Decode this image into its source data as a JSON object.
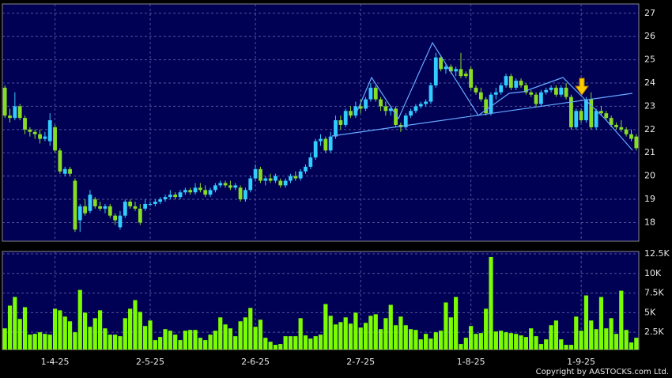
{
  "chart_data": [
    {
      "type": "candlestick",
      "up_color": "#33ccff",
      "down_color": "#88dd22",
      "grid": true,
      "ylim": [
        17.2,
        27.4
      ],
      "yticks": [
        18,
        19,
        20,
        21,
        22,
        23,
        24,
        25,
        26,
        27
      ],
      "ohlc": [
        [
          23.8,
          23.9,
          22.5,
          22.6
        ],
        [
          22.6,
          22.9,
          22.3,
          22.5
        ],
        [
          22.5,
          23.6,
          22.4,
          23.0
        ],
        [
          23.0,
          23.1,
          22.4,
          22.5
        ],
        [
          22.5,
          22.6,
          21.8,
          22.0
        ],
        [
          22.0,
          22.1,
          21.7,
          21.9
        ],
        [
          21.9,
          22.0,
          21.6,
          21.8
        ],
        [
          21.8,
          22.0,
          21.4,
          21.6
        ],
        [
          21.6,
          21.9,
          21.5,
          21.7
        ],
        [
          21.5,
          22.7,
          21.3,
          22.4
        ],
        [
          22.1,
          22.2,
          21.0,
          21.1
        ],
        [
          21.1,
          21.2,
          20.1,
          20.2
        ],
        [
          20.1,
          20.4,
          20.0,
          20.3
        ],
        [
          20.3,
          20.4,
          20.0,
          20.1
        ],
        [
          19.8,
          19.9,
          17.6,
          17.7
        ],
        [
          18.1,
          18.8,
          17.6,
          18.7
        ],
        [
          18.7,
          19.0,
          18.3,
          18.4
        ],
        [
          18.5,
          19.4,
          18.4,
          19.2
        ],
        [
          19.0,
          19.1,
          18.6,
          18.7
        ],
        [
          18.7,
          18.9,
          18.5,
          18.6
        ],
        [
          18.6,
          18.8,
          18.4,
          18.7
        ],
        [
          18.7,
          18.8,
          18.2,
          18.3
        ],
        [
          18.3,
          18.4,
          17.9,
          18.1
        ],
        [
          17.8,
          18.5,
          17.7,
          18.3
        ],
        [
          18.3,
          19.0,
          18.2,
          18.9
        ],
        [
          18.9,
          19.0,
          18.6,
          18.7
        ],
        [
          18.7,
          18.9,
          18.5,
          18.6
        ],
        [
          18.6,
          18.8,
          17.9,
          18.0
        ],
        [
          18.6,
          19.0,
          18.5,
          18.8
        ],
        [
          18.8,
          18.9,
          18.7,
          18.8
        ],
        [
          18.8,
          19.0,
          18.7,
          18.9
        ],
        [
          18.9,
          19.1,
          18.8,
          19.0
        ],
        [
          19.0,
          19.2,
          18.9,
          19.1
        ],
        [
          19.1,
          19.4,
          19.0,
          19.2
        ],
        [
          19.2,
          19.3,
          19.0,
          19.1
        ],
        [
          19.1,
          19.4,
          19.0,
          19.3
        ],
        [
          19.3,
          19.5,
          19.2,
          19.4
        ],
        [
          19.4,
          19.5,
          19.2,
          19.3
        ],
        [
          19.3,
          19.7,
          19.2,
          19.5
        ],
        [
          19.5,
          19.7,
          19.3,
          19.4
        ],
        [
          19.4,
          19.6,
          19.1,
          19.2
        ],
        [
          19.2,
          19.5,
          19.1,
          19.4
        ],
        [
          19.4,
          19.7,
          19.3,
          19.6
        ],
        [
          19.6,
          19.8,
          19.5,
          19.7
        ],
        [
          19.7,
          19.8,
          19.5,
          19.6
        ],
        [
          19.6,
          19.8,
          19.4,
          19.5
        ],
        [
          19.5,
          19.7,
          19.4,
          19.6
        ],
        [
          19.5,
          19.6,
          18.9,
          19.0
        ],
        [
          19.0,
          19.5,
          18.9,
          19.4
        ],
        [
          19.4,
          20.0,
          19.3,
          19.9
        ],
        [
          19.9,
          20.5,
          19.8,
          20.3
        ],
        [
          20.3,
          20.4,
          19.7,
          19.8
        ],
        [
          19.8,
          20.0,
          19.6,
          19.9
        ],
        [
          19.9,
          20.1,
          19.7,
          19.8
        ],
        [
          19.8,
          20.1,
          19.7,
          20.0
        ],
        [
          19.8,
          19.9,
          19.5,
          19.6
        ],
        [
          19.6,
          19.9,
          19.5,
          19.8
        ],
        [
          19.8,
          20.1,
          19.7,
          20.0
        ],
        [
          20.0,
          20.2,
          19.8,
          19.9
        ],
        [
          19.9,
          20.3,
          19.8,
          20.2
        ],
        [
          20.2,
          20.5,
          20.1,
          20.4
        ],
        [
          20.4,
          21.0,
          20.3,
          20.8
        ],
        [
          20.8,
          21.6,
          20.7,
          21.5
        ],
        [
          21.5,
          21.8,
          21.3,
          21.6
        ],
        [
          21.6,
          21.7,
          21.0,
          21.1
        ],
        [
          21.1,
          21.9,
          21.0,
          21.7
        ],
        [
          21.7,
          22.6,
          21.6,
          22.4
        ],
        [
          22.4,
          22.6,
          22.0,
          22.2
        ],
        [
          22.2,
          22.9,
          22.1,
          22.8
        ],
        [
          22.8,
          23.0,
          22.5,
          22.6
        ],
        [
          22.6,
          23.2,
          22.5,
          23.0
        ],
        [
          23.0,
          23.3,
          22.7,
          22.9
        ],
        [
          22.9,
          23.4,
          22.8,
          23.3
        ],
        [
          23.3,
          24.0,
          23.2,
          23.8
        ],
        [
          23.8,
          23.9,
          23.2,
          23.3
        ],
        [
          23.3,
          23.4,
          22.8,
          23.0
        ],
        [
          23.0,
          23.2,
          22.6,
          22.8
        ],
        [
          22.8,
          23.0,
          22.6,
          22.9
        ],
        [
          22.9,
          23.0,
          22.1,
          22.2
        ],
        [
          22.2,
          22.3,
          21.9,
          22.1
        ],
        [
          22.1,
          22.7,
          22.0,
          22.6
        ],
        [
          22.6,
          22.9,
          22.5,
          22.8
        ],
        [
          22.8,
          23.1,
          22.7,
          23.0
        ],
        [
          23.0,
          23.2,
          22.9,
          23.1
        ],
        [
          23.1,
          23.3,
          23.0,
          23.2
        ],
        [
          23.2,
          24.0,
          23.1,
          23.9
        ],
        [
          23.9,
          25.3,
          23.8,
          25.1
        ],
        [
          25.1,
          25.2,
          24.5,
          24.6
        ],
        [
          24.6,
          24.8,
          24.4,
          24.7
        ],
        [
          24.7,
          24.8,
          24.4,
          24.5
        ],
        [
          24.5,
          24.7,
          24.3,
          24.6
        ],
        [
          24.6,
          25.3,
          24.2,
          24.3
        ],
        [
          24.4,
          24.5,
          24.2,
          24.3
        ],
        [
          24.6,
          24.7,
          23.7,
          23.8
        ],
        [
          23.8,
          23.9,
          23.5,
          23.6
        ],
        [
          23.6,
          23.8,
          23.2,
          23.3
        ],
        [
          23.3,
          23.4,
          22.6,
          22.7
        ],
        [
          22.7,
          23.6,
          22.6,
          23.5
        ],
        [
          23.5,
          23.8,
          23.3,
          23.6
        ],
        [
          23.6,
          24.0,
          23.5,
          23.9
        ],
        [
          23.9,
          24.4,
          23.8,
          24.3
        ],
        [
          24.3,
          24.4,
          23.7,
          23.8
        ],
        [
          23.8,
          24.2,
          23.7,
          24.1
        ],
        [
          24.1,
          24.2,
          23.8,
          23.9
        ],
        [
          23.9,
          24.0,
          23.5,
          23.6
        ],
        [
          23.6,
          23.7,
          23.4,
          23.5
        ],
        [
          23.5,
          23.6,
          23.0,
          23.1
        ],
        [
          23.1,
          23.7,
          23.0,
          23.6
        ],
        [
          23.6,
          23.8,
          23.5,
          23.7
        ],
        [
          23.7,
          23.9,
          23.6,
          23.8
        ],
        [
          23.8,
          23.9,
          23.4,
          23.5
        ],
        [
          23.5,
          23.9,
          23.4,
          23.8
        ],
        [
          23.8,
          24.0,
          23.3,
          23.4
        ],
        [
          23.4,
          23.5,
          22.0,
          22.1
        ],
        [
          22.1,
          22.9,
          22.0,
          22.8
        ],
        [
          22.8,
          22.9,
          22.3,
          22.4
        ],
        [
          22.4,
          23.4,
          22.3,
          23.3
        ],
        [
          23.3,
          23.6,
          22.0,
          22.1
        ],
        [
          22.1,
          22.9,
          22.0,
          22.8
        ],
        [
          22.8,
          23.0,
          22.6,
          22.7
        ],
        [
          22.7,
          22.8,
          22.4,
          22.5
        ],
        [
          22.5,
          22.6,
          22.1,
          22.2
        ],
        [
          22.2,
          22.3,
          22.0,
          22.1
        ],
        [
          22.1,
          22.4,
          21.9,
          22.0
        ],
        [
          22.0,
          22.1,
          21.7,
          21.8
        ],
        [
          21.8,
          22.0,
          21.5,
          21.6
        ],
        [
          21.7,
          21.8,
          21.1,
          21.2
        ]
      ]
    },
    {
      "type": "bar",
      "color": "#7cfc00",
      "grid": true,
      "ylim": [
        300,
        12800
      ],
      "yticks": [
        {
          "value": 2500,
          "label": "2.5K"
        },
        {
          "value": 5000,
          "label": "5K"
        },
        {
          "value": 7500,
          "label": "7.5K"
        },
        {
          "value": 10000,
          "label": "10K"
        },
        {
          "value": 12500,
          "label": "12.5K"
        }
      ],
      "xticks": [
        {
          "value": 10,
          "label": "1-4-25"
        },
        {
          "value": 29,
          "label": "2-5-25"
        },
        {
          "value": 50,
          "label": "2-6-25"
        },
        {
          "value": 71,
          "label": "2-7-25"
        },
        {
          "value": 93,
          "label": "1-8-25"
        },
        {
          "value": 115,
          "label": "1-9-25"
        }
      ],
      "values": [
        3000,
        5900,
        7000,
        4200,
        5700,
        2200,
        2300,
        2500,
        2300,
        2200,
        5500,
        5300,
        4500,
        3900,
        2500,
        7900,
        5000,
        3200,
        4300,
        5300,
        3000,
        2200,
        2200,
        2000,
        4300,
        5500,
        6600,
        5100,
        3300,
        4000,
        1500,
        1900,
        2900,
        2700,
        2200,
        1500,
        2700,
        2800,
        2800,
        1800,
        1500,
        2200,
        2700,
        4400,
        3500,
        3000,
        2000,
        3900,
        4400,
        5600,
        3200,
        4100,
        1800,
        1300,
        900,
        1000,
        2000,
        2000,
        2000,
        4300,
        2100,
        1700,
        2000,
        2200,
        6100,
        4600,
        3500,
        3800,
        4400,
        3600,
        5000,
        3100,
        3700,
        4600,
        4800,
        2900,
        4300,
        6000,
        3400,
        4500,
        3400,
        2900,
        2800,
        1600,
        2300,
        1700,
        2500,
        2700,
        6300,
        4400,
        7000,
        1000,
        1800,
        3300,
        2300,
        2400,
        5500,
        12100,
        2600,
        2700,
        2500,
        2400,
        2300,
        2100,
        1900,
        3000,
        2000,
        1000,
        1600,
        3400,
        4000,
        1600,
        900,
        900,
        4500,
        2700,
        7200,
        4000,
        2900,
        7000,
        3000,
        4300,
        2300,
        7800,
        2800,
        1200,
        1800
      ],
      "footer": "Copyright by AASTOCKS.com Ltd."
    }
  ]
}
